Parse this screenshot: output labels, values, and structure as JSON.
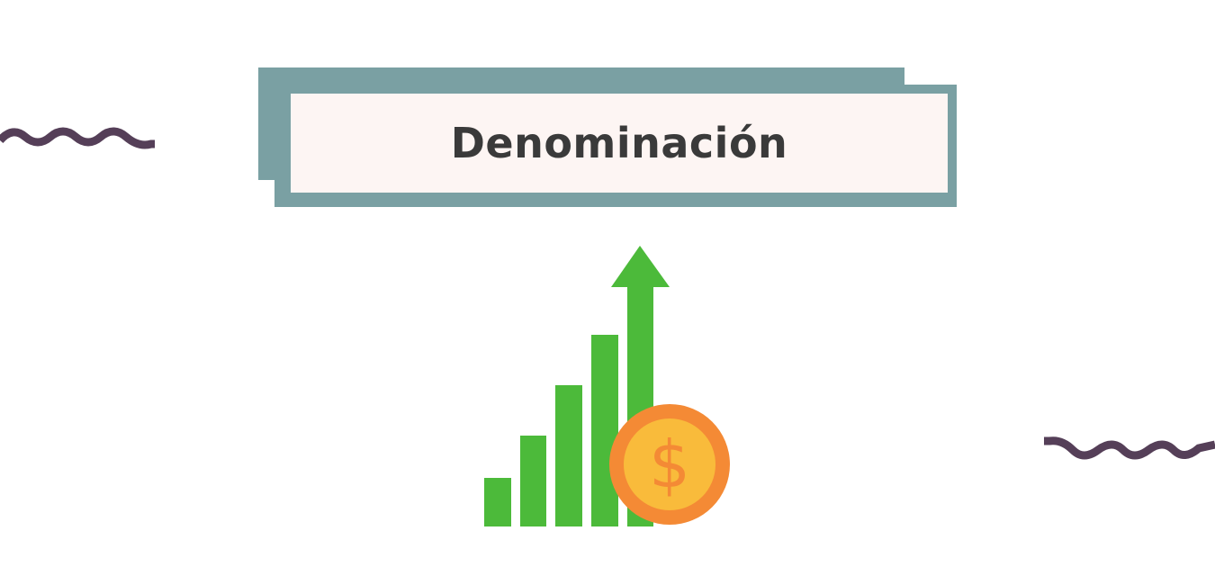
{
  "title": "Denominación",
  "colors": {
    "frame": "#7aa0a3",
    "frame_fill": "#fdf5f3",
    "title_text": "#3a3a3a",
    "wave": "#553f58",
    "bars": "#4cba3a",
    "coin_outer": "#f48a35",
    "coin_inner": "#f9bb3b"
  },
  "illustration": {
    "icons": [
      "growth-bars-icon",
      "up-arrow-icon",
      "dollar-coin-icon"
    ],
    "coin_symbol": "$"
  }
}
